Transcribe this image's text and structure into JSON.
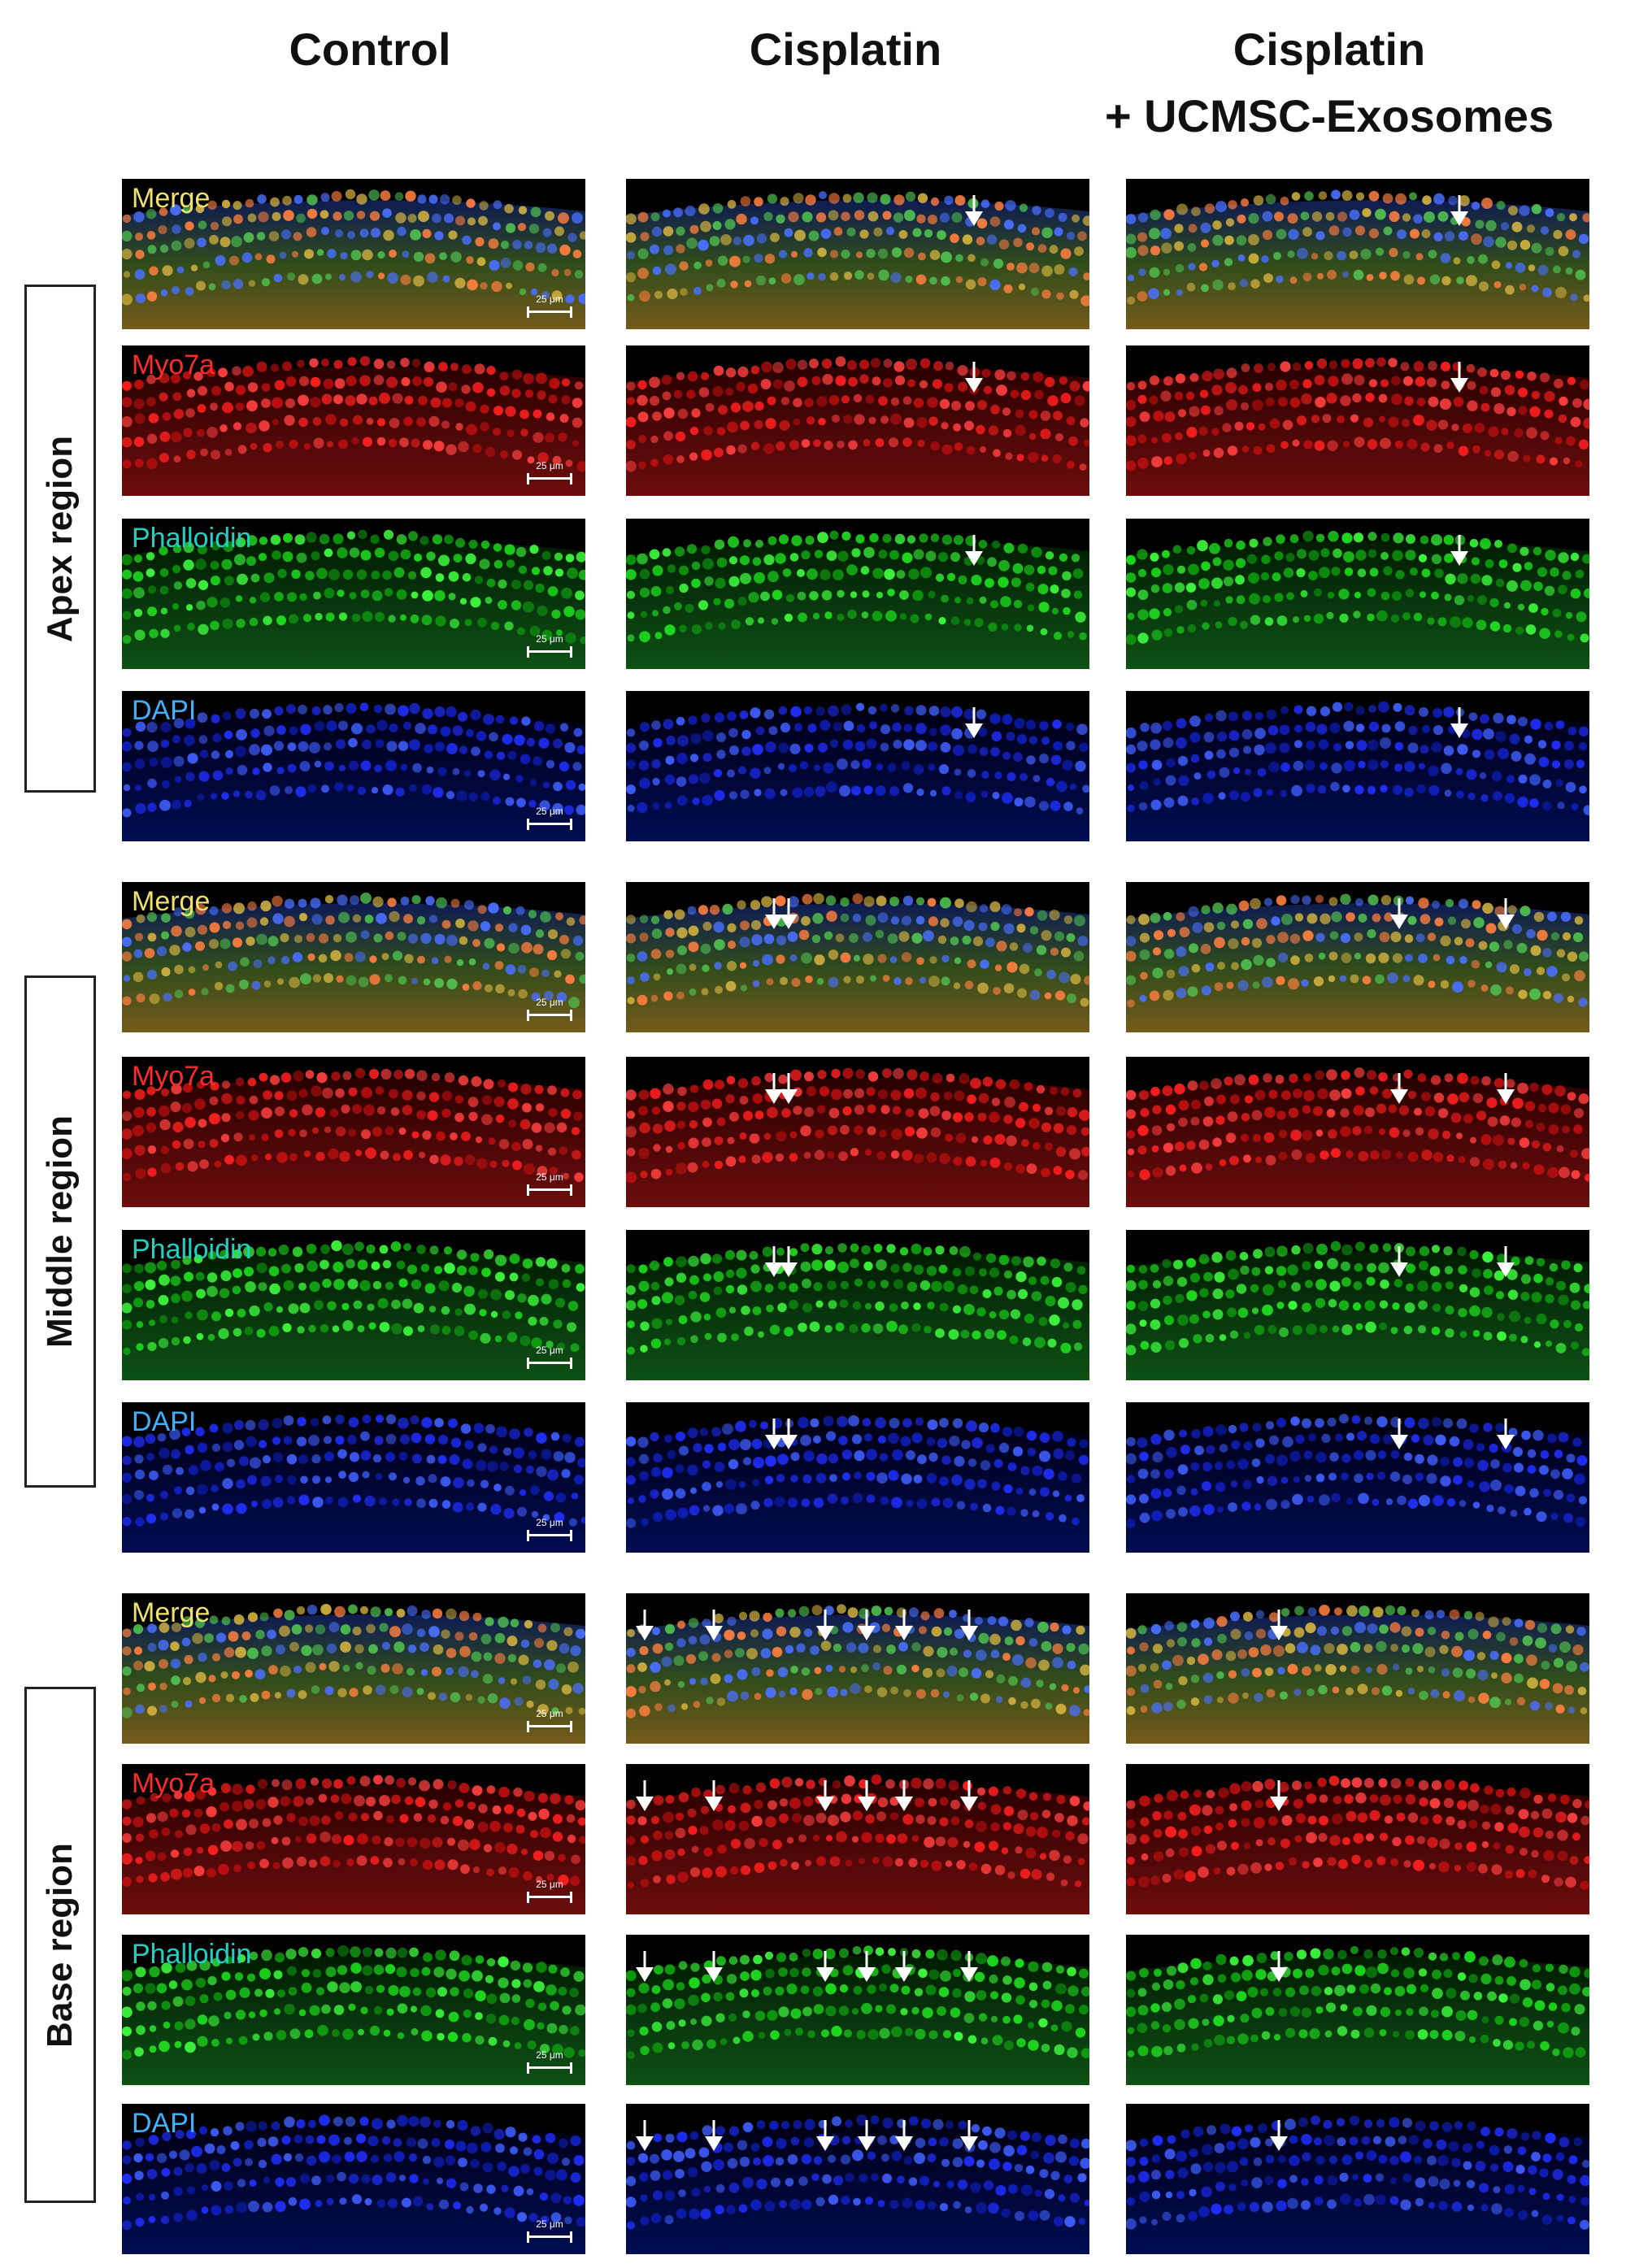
{
  "columns": [
    "Control",
    "Cisplatin",
    "Cisplatin\n+ UCMSC-Exosomes"
  ],
  "regions": [
    "Apex region",
    "Middle region",
    "Base region"
  ],
  "channels": [
    "Merge",
    "Myo7a",
    "Phalloidin",
    "DAPI"
  ],
  "scale_bar": "25 μm",
  "colors": {
    "merge_label": "#f0e070",
    "myo7a_label": "#ff2a2a",
    "phalloidin_label": "#20d0c0",
    "dapi_label": "#40b0ff",
    "myo7a_stain": "#e01818",
    "phalloidin_stain": "#18c018",
    "dapi_stain": "#2030f0"
  }
}
